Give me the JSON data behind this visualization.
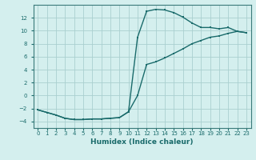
{
  "xlabel": "Humidex (Indice chaleur)",
  "background_color": "#d4efee",
  "grid_color": "#aacfcf",
  "line_color": "#1a6b6b",
  "spine_color": "#3a7a7a",
  "line1_x": [
    0,
    1,
    2,
    3,
    4,
    5,
    6,
    7,
    8,
    9,
    10,
    11,
    12,
    13,
    14,
    15,
    16,
    17,
    18,
    19,
    20,
    21,
    22,
    23
  ],
  "line1_y": [
    -2.2,
    -2.6,
    -3.0,
    -3.5,
    -3.7,
    -3.7,
    -3.6,
    -3.6,
    -3.5,
    -3.4,
    -2.5,
    9.0,
    13.0,
    13.3,
    13.2,
    12.8,
    12.1,
    11.2,
    10.5,
    10.5,
    10.3,
    10.5,
    9.9,
    9.7
  ],
  "line2_x": [
    0,
    1,
    2,
    3,
    4,
    5,
    6,
    7,
    8,
    9,
    10,
    11,
    12,
    13,
    14,
    15,
    16,
    17,
    18,
    19,
    20,
    21,
    22,
    23
  ],
  "line2_y": [
    -2.2,
    -2.6,
    -3.0,
    -3.5,
    -3.7,
    -3.7,
    -3.6,
    -3.6,
    -3.5,
    -3.4,
    -2.5,
    0.0,
    4.8,
    5.2,
    5.8,
    6.5,
    7.2,
    8.0,
    8.5,
    9.0,
    9.2,
    9.6,
    9.9,
    9.7
  ],
  "xlim": [
    -0.5,
    23.5
  ],
  "ylim": [
    -5.0,
    14.0
  ],
  "yticks": [
    -4,
    -2,
    0,
    2,
    4,
    6,
    8,
    10,
    12
  ],
  "xtick_labels": [
    "0",
    "1",
    "2",
    "3",
    "4",
    "5",
    "6",
    "7",
    "8",
    "9",
    "10",
    "11",
    "12",
    "13",
    "14",
    "15",
    "16",
    "17",
    "18",
    "19",
    "20",
    "21",
    "22",
    "23"
  ],
  "tick_fontsize": 5.0,
  "xlabel_fontsize": 6.5,
  "marker_size": 2.0,
  "line_width": 1.0
}
